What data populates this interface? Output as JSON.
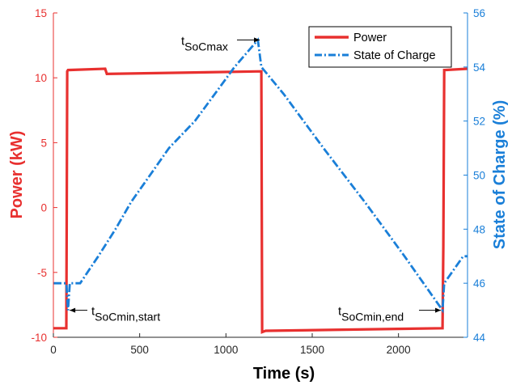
{
  "chart_data": {
    "type": "line",
    "xlabel": "Time (s)",
    "ylabel_left": "Power (kW)",
    "ylabel_right": "State of Charge (%)",
    "xlim": [
      0,
      2400
    ],
    "ylim_left": [
      -10,
      15
    ],
    "ylim_right": [
      44,
      56
    ],
    "xticks": [
      0,
      500,
      1000,
      1500,
      2000
    ],
    "yticks_left": [
      -10,
      -5,
      0,
      5,
      10,
      15
    ],
    "yticks_right": [
      44,
      46,
      48,
      50,
      52,
      54,
      56
    ],
    "grid": false,
    "legend": "top-right",
    "colors": {
      "left_axis": "#e8302f",
      "right_axis": "#1a7fd8"
    },
    "series": [
      {
        "name": "Power",
        "axis": "left",
        "style": "solid",
        "color": "#e8302f",
        "x": [
          0,
          75,
          80,
          85,
          300,
          310,
          1205,
          1210,
          1230,
          2255,
          2260,
          2265,
          2400
        ],
        "y": [
          -9.3,
          -9.3,
          10.5,
          10.6,
          10.7,
          10.3,
          10.5,
          -9.6,
          -9.5,
          -9.3,
          -3.0,
          10.6,
          10.7
        ]
      },
      {
        "name": "State of Charge",
        "axis": "right",
        "style": "dash-dot",
        "color": "#1a7fd8",
        "x": [
          0,
          75,
          85,
          85,
          95,
          95,
          155,
          155,
          260,
          260,
          360,
          360,
          450,
          450,
          560,
          560,
          670,
          670,
          820,
          820,
          935,
          935,
          1050,
          1050,
          1185,
          1185,
          1205,
          1205,
          1335,
          1335,
          1450,
          1450,
          1565,
          1565,
          1685,
          1685,
          1805,
          1805,
          1920,
          1920,
          2035,
          2035,
          2145,
          2145,
          2255,
          2255,
          2265,
          2265,
          2375,
          2375,
          2400
        ],
        "y": [
          46,
          46,
          45,
          45,
          46,
          46,
          46,
          46,
          47,
          47,
          48,
          48,
          49,
          49,
          50,
          50,
          51,
          51,
          52,
          52,
          53,
          53,
          54,
          54,
          55,
          55,
          54,
          54,
          53,
          53,
          52,
          52,
          51,
          51,
          50,
          50,
          49,
          49,
          48,
          48,
          47,
          47,
          46,
          46,
          45,
          45,
          46,
          46,
          47,
          47,
          47
        ]
      }
    ],
    "annotations": [
      {
        "label": "t",
        "sub": "SoCmax",
        "x": 1205,
        "y_right": 55,
        "side": "left"
      },
      {
        "label": "t",
        "sub": "SoCmin,start",
        "x": 85,
        "y_right": 45,
        "side": "right"
      },
      {
        "label": "t",
        "sub": "SoCmin,end",
        "x": 2255,
        "y_right": 45,
        "side": "left"
      }
    ]
  }
}
